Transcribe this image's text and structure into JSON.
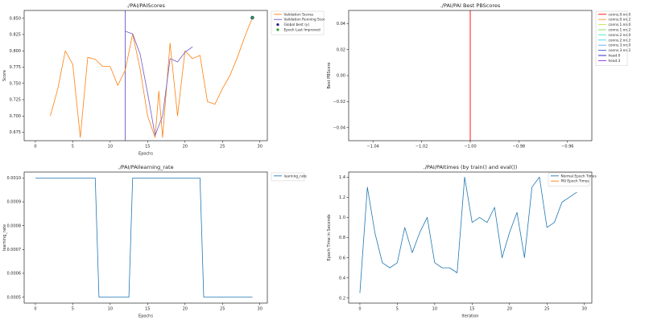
{
  "figure": {
    "background": "#ffffff"
  },
  "chart_data": [
    {
      "id": "pai-scores",
      "type": "line",
      "title": "./PAI/PAIScores",
      "xlabel": "Epochs",
      "ylabel": "Score",
      "xlim": [
        -1.5,
        31
      ],
      "ylim": [
        0.662,
        0.862
      ],
      "xticks": [
        0,
        5,
        10,
        15,
        20,
        25,
        30
      ],
      "xtick_labels": [
        "0",
        "5",
        "10",
        "15",
        "20",
        "25",
        "30"
      ],
      "yticks": [
        0.675,
        0.7,
        0.725,
        0.75,
        0.775,
        0.8,
        0.825,
        0.85
      ],
      "ytick_labels": [
        "0.675",
        "0.700",
        "0.725",
        "0.750",
        "0.775",
        "0.800",
        "0.825",
        "0.850"
      ],
      "grid": false,
      "vlines": [
        {
          "x": 12,
          "color": "#6a5acd"
        }
      ],
      "series": [
        {
          "name": "Validation Scores",
          "color": "#ff7f0e",
          "points": [
            [
              2,
              0.7
            ],
            [
              3,
              0.742
            ],
            [
              4,
              0.8
            ],
            [
              5,
              0.779
            ],
            [
              6,
              0.667
            ],
            [
              7,
              0.79
            ],
            [
              8,
              0.787
            ],
            [
              9,
              0.776
            ],
            [
              10,
              0.776
            ],
            [
              11,
              0.747
            ],
            [
              12,
              0.77
            ],
            [
              13,
              0.826
            ],
            [
              14,
              0.772
            ],
            [
              15,
              0.7
            ],
            [
              16,
              0.667
            ],
            [
              16.5,
              0.738
            ],
            [
              17,
              0.667
            ],
            [
              18,
              0.812
            ],
            [
              19,
              0.7
            ],
            [
              20,
              0.8
            ],
            [
              21,
              0.788
            ],
            [
              22,
              0.793
            ],
            [
              23,
              0.722
            ],
            [
              24,
              0.718
            ],
            [
              25,
              0.742
            ],
            [
              26,
              0.762
            ],
            [
              27,
              0.79
            ],
            [
              28,
              0.822
            ],
            [
              29,
              0.851
            ]
          ]
        },
        {
          "name": "Validation Running Scores",
          "color": "#6a5acd",
          "points": [
            [
              12,
              0.83
            ],
            [
              13,
              0.826
            ],
            [
              14,
              0.795
            ],
            [
              15,
              0.735
            ],
            [
              16,
              0.67
            ],
            [
              17,
              0.7
            ],
            [
              18,
              0.788
            ],
            [
              19,
              0.783
            ],
            [
              20,
              0.798
            ],
            [
              21,
              0.806
            ]
          ]
        }
      ],
      "markers": [
        {
          "name": "Global best (y)",
          "x": 29,
          "y": 0.851,
          "color": "#1a237e",
          "r": 2.2
        },
        {
          "name": "Epoch Last Improved",
          "x": 29,
          "y": 0.851,
          "color": "#2ca02c",
          "r": 1.6
        }
      ],
      "legend": {
        "position": "outside",
        "items": [
          {
            "label": "Validation Scores",
            "color": "#ff7f0e",
            "glyph": "line"
          },
          {
            "label": "Validation Running Scores",
            "color": "#6a5acd",
            "glyph": "line"
          },
          {
            "label": "Global best (y)",
            "color": "#1a237e",
            "glyph": "dot"
          },
          {
            "label": "Epoch Last Improved",
            "color": "#2ca02c",
            "glyph": "dot"
          }
        ]
      }
    },
    {
      "id": "pai-best-pbscores",
      "type": "line",
      "title": "./PAI/PAI Best PBScores",
      "xlabel": "",
      "ylabel": "Best PBScore",
      "xlim": [
        -1.05,
        -0.95
      ],
      "ylim": [
        -0.05,
        0.05
      ],
      "xticks": [
        -1.04,
        -1.02,
        -1.0,
        -0.98,
        -0.96
      ],
      "xtick_labels": [
        "−1.04",
        "−1.02",
        "−1.00",
        "−0.98",
        "−0.96"
      ],
      "yticks": [
        -0.04,
        -0.02,
        0.0,
        0.02,
        0.04
      ],
      "ytick_labels": [
        "−0.04",
        "−0.02",
        "0.00",
        "0.02",
        "0.04"
      ],
      "grid": false,
      "vlines": [
        {
          "x": -1.0,
          "color": "#ff0000"
        }
      ],
      "series": [],
      "markers": [],
      "legend": {
        "position": "outside",
        "items": [
          {
            "label": "conns.0.nn.0",
            "color": "#ff0000",
            "glyph": "line"
          },
          {
            "label": "conns.0.nn.2",
            "color": "#ff9933",
            "glyph": "line"
          },
          {
            "label": "conns.1.nn.0",
            "color": "#c6e24a",
            "glyph": "line"
          },
          {
            "label": "conns.1.nn.2",
            "color": "#7ddf6e",
            "glyph": "line"
          },
          {
            "label": "conns.2.nn.0",
            "color": "#4de8b8",
            "glyph": "line"
          },
          {
            "label": "conns.2.nn.2",
            "color": "#3fd9e8",
            "glyph": "line"
          },
          {
            "label": "conns.3.nn.0",
            "color": "#58a8f0",
            "glyph": "line"
          },
          {
            "label": "conns.3.nn.2",
            "color": "#3b5bdb",
            "glyph": "line"
          },
          {
            "label": "head.0",
            "color": "#1a1ab3",
            "glyph": "line"
          },
          {
            "label": "head.3",
            "color": "#8a2be2",
            "glyph": "line"
          }
        ]
      }
    },
    {
      "id": "pai-learning-rate",
      "type": "line",
      "title": "./PAI/PAIlearning_rate",
      "xlabel": "Epochs",
      "ylabel": "learning_rate",
      "xlim": [
        -1.5,
        31
      ],
      "ylim": [
        0.000475,
        0.001025
      ],
      "xticks": [
        0,
        5,
        10,
        15,
        20,
        25,
        30
      ],
      "xtick_labels": [
        "0",
        "5",
        "10",
        "15",
        "20",
        "25",
        "30"
      ],
      "yticks": [
        0.0005,
        0.0006,
        0.0007,
        0.0008,
        0.0009,
        0.001
      ],
      "ytick_labels": [
        "0.0005",
        "0.0006",
        "0.0007",
        "0.0008",
        "0.0009",
        "0.0010"
      ],
      "grid": false,
      "vlines": [],
      "series": [
        {
          "name": "learning_rate",
          "color": "#1f77b4",
          "points": [
            [
              0,
              0.001
            ],
            [
              8,
              0.001
            ],
            [
              8.5,
              0.0005
            ],
            [
              12.5,
              0.0005
            ],
            [
              13,
              0.001
            ],
            [
              22,
              0.001
            ],
            [
              22.5,
              0.0005
            ],
            [
              29,
              0.0005
            ]
          ]
        }
      ],
      "markers": [],
      "legend": {
        "position": "outside",
        "items": [
          {
            "label": "learning_rate",
            "color": "#1f77b4",
            "glyph": "line"
          }
        ]
      }
    },
    {
      "id": "pai-times",
      "type": "line",
      "title": "./PAI/PAItimes (by train() and eval())",
      "xlabel": "Iteration",
      "ylabel": "Epoch Time in Seconds",
      "xlim": [
        -1.5,
        31
      ],
      "ylim": [
        0.15,
        1.45
      ],
      "xticks": [
        0,
        5,
        10,
        15,
        20,
        25,
        30
      ],
      "xtick_labels": [
        "0",
        "5",
        "10",
        "15",
        "20",
        "25",
        "30"
      ],
      "yticks": [
        0.2,
        0.4,
        0.6,
        0.8,
        1.0,
        1.2,
        1.4
      ],
      "ytick_labels": [
        "0.2",
        "0.4",
        "0.6",
        "0.8",
        "1.0",
        "1.2",
        "1.4"
      ],
      "grid": false,
      "vlines": [],
      "series": [
        {
          "name": "Normal Epoch Times",
          "color": "#1f77b4",
          "points": [
            [
              0,
              0.25
            ],
            [
              1,
              1.3
            ],
            [
              2,
              0.85
            ],
            [
              3,
              0.55
            ],
            [
              4,
              0.5
            ],
            [
              5,
              0.55
            ],
            [
              6,
              0.9
            ],
            [
              7,
              0.65
            ],
            [
              8,
              0.85
            ],
            [
              9,
              1.0
            ],
            [
              10,
              0.55
            ],
            [
              11,
              0.5
            ],
            [
              12,
              0.5
            ],
            [
              13,
              0.45
            ],
            [
              14,
              1.4
            ],
            [
              15,
              0.95
            ],
            [
              16,
              1.0
            ],
            [
              17,
              0.95
            ],
            [
              18,
              1.1
            ],
            [
              19,
              0.6
            ],
            [
              20,
              0.85
            ],
            [
              21,
              1.05
            ],
            [
              22,
              0.6
            ],
            [
              23,
              1.3
            ],
            [
              24,
              1.4
            ],
            [
              25,
              0.9
            ],
            [
              26,
              0.95
            ],
            [
              27,
              1.15
            ],
            [
              28,
              1.2
            ],
            [
              29,
              1.25
            ]
          ]
        },
        {
          "name": "PAI Epoch Times",
          "color": "#ff7f0e",
          "points": []
        }
      ],
      "markers": [],
      "legend": {
        "position": "inside",
        "items": [
          {
            "label": "Normal Epoch Times",
            "color": "#1f77b4",
            "glyph": "line"
          },
          {
            "label": "PAI Epoch Times",
            "color": "#ff7f0e",
            "glyph": "line"
          }
        ]
      }
    }
  ]
}
